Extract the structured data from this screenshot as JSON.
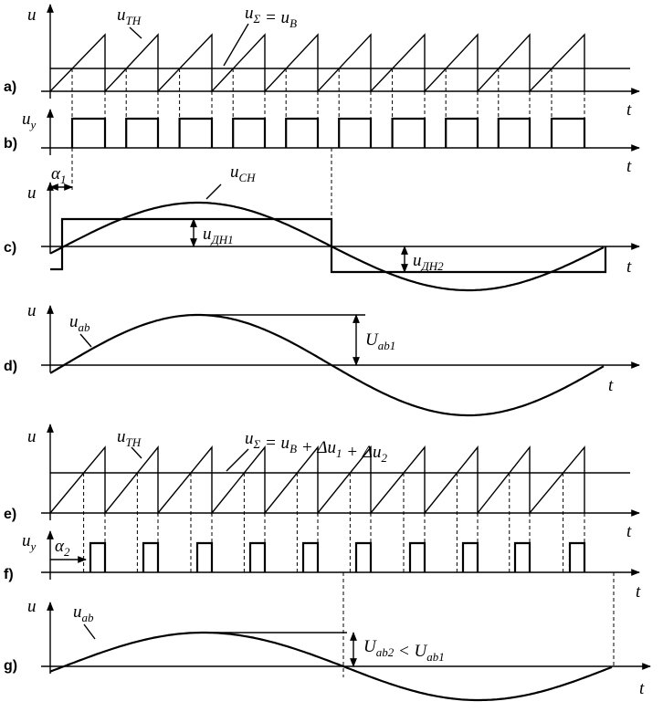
{
  "panels": {
    "a": {
      "label": "a)",
      "y": "u",
      "t": "t",
      "ramp": {
        "text": "u",
        "sub": "ТН"
      },
      "sum": [
        {
          "text": "u",
          "sub": "Σ"
        },
        {
          "text": " = u",
          "sub": "В"
        }
      ]
    },
    "b": {
      "label": "b)",
      "y": {
        "text": "u",
        "sub": "y"
      },
      "t": "t",
      "alpha": {
        "text": "α",
        "sub": "1"
      }
    },
    "c": {
      "label": "c)",
      "y": "u",
      "t": "t",
      "sine": {
        "text": "u",
        "sub": "СН"
      },
      "level1": {
        "text": "u",
        "sub": "ДН1"
      },
      "level2": {
        "text": "u",
        "sub": "ДН2"
      }
    },
    "d": {
      "label": "d)",
      "y": "u",
      "t": "t",
      "wave": {
        "text": "u",
        "sub": "ab"
      },
      "amplitude": {
        "text": "U",
        "sub": "ab1"
      }
    },
    "e": {
      "label": "e)",
      "y": "u",
      "t": "t",
      "ramp": {
        "text": "u",
        "sub": "ТН"
      },
      "sum": [
        {
          "text": "u",
          "sub": "Σ"
        },
        {
          "text": " = u",
          "sub": "В"
        },
        {
          "text": " + Δu",
          "sub": "1"
        },
        {
          "text": " + Δu",
          "sub": "2"
        }
      ]
    },
    "f": {
      "label": "f)",
      "y": {
        "text": "u",
        "sub": "y"
      },
      "t": "t",
      "alpha": {
        "text": "α",
        "sub": "2"
      }
    },
    "g": {
      "label": "g)",
      "y": "u",
      "t": "t",
      "wave": {
        "text": "u",
        "sub": "ab"
      },
      "amplitude": [
        {
          "text": "U",
          "sub": "ab2"
        },
        {
          "text": " < U",
          "sub": "ab1"
        }
      ]
    }
  }
}
